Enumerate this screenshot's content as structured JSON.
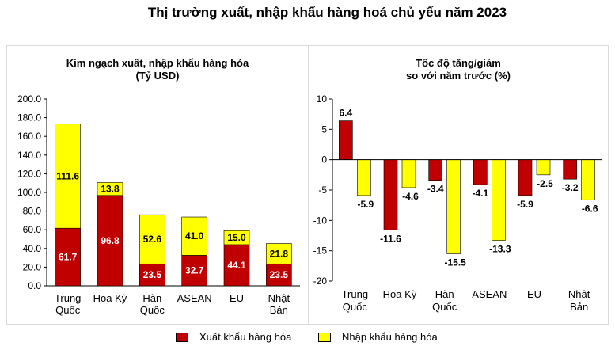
{
  "title": "Thị trường xuất, nhập khẩu hàng hoá chủ yếu năm 2023",
  "legend": {
    "export_label": "Xuất khẩu hàng hóa",
    "import_label": "Nhập khẩu hàng hóa"
  },
  "colors": {
    "export": "#c00000",
    "import": "#ffff00"
  },
  "chart_data": [
    {
      "type": "bar",
      "stacked": true,
      "title": "Kim ngạch xuất, nhập khẩu hàng hóa",
      "subtitle": "(Tỷ USD)",
      "categories": [
        [
          "Trung",
          "Quốc"
        ],
        [
          "Hoa Kỳ"
        ],
        [
          "Hàn",
          "Quốc"
        ],
        [
          "ASEAN"
        ],
        [
          "EU"
        ],
        [
          "Nhật",
          "Bản"
        ]
      ],
      "series": [
        {
          "name": "Xuất khẩu hàng hóa",
          "values": [
            61.7,
            96.8,
            23.5,
            32.7,
            44.1,
            23.5
          ]
        },
        {
          "name": "Nhập khẩu hàng hóa",
          "values": [
            111.6,
            13.8,
            52.6,
            41.0,
            15.0,
            21.8
          ]
        }
      ],
      "ylim": [
        0,
        200
      ],
      "yticks": [
        "0.0",
        "20.0",
        "40.0",
        "60.0",
        "80.0",
        "100.0",
        "120.0",
        "140.0",
        "160.0",
        "180.0",
        "200.0"
      ],
      "data_labels": [
        [
          "61.7",
          "96.8",
          "23.5",
          "32.7",
          "44.1",
          "23.5"
        ],
        [
          "111.6",
          "13.8",
          "52.6",
          "41.0",
          "15.0",
          "21.8"
        ]
      ],
      "grid": false,
      "legend_position": "bottom"
    },
    {
      "type": "bar",
      "stacked": false,
      "title": "Tốc độ tăng/giảm",
      "subtitle": "so với năm trước (%)",
      "categories": [
        [
          "Trung",
          "Quốc"
        ],
        [
          "Hoa Kỳ"
        ],
        [
          "Hàn",
          "Quốc"
        ],
        [
          "ASEAN"
        ],
        [
          "EU"
        ],
        [
          "Nhật",
          "Bản"
        ]
      ],
      "series": [
        {
          "name": "Xuất khẩu hàng hóa",
          "values": [
            6.4,
            -11.6,
            -3.4,
            -4.1,
            -5.9,
            -3.2
          ]
        },
        {
          "name": "Nhập khẩu hàng hóa",
          "values": [
            -5.9,
            -4.6,
            -15.5,
            -13.3,
            -2.5,
            -6.6
          ]
        }
      ],
      "ylim": [
        -20,
        10
      ],
      "yticks": [
        "-20",
        "-15",
        "-10",
        "-5",
        "0",
        "5",
        "10"
      ],
      "data_labels": [
        [
          "6.4",
          "-11.6",
          "-3.4",
          "-4.1",
          "-5.9",
          "-3.2"
        ],
        [
          "-5.9",
          "-4.6",
          "-15.5",
          "-13.3",
          "-2.5",
          "-6.6"
        ]
      ],
      "grid": false,
      "legend_position": "bottom"
    }
  ]
}
